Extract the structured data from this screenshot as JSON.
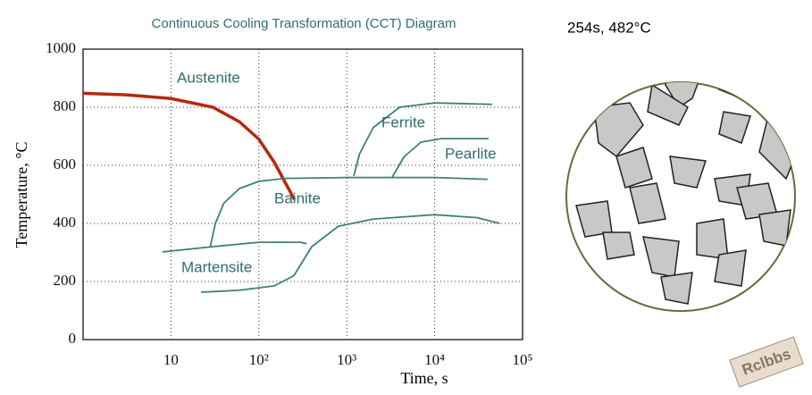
{
  "chart_data": {
    "type": "line",
    "title": "Continuous Cooling Transformation (CCT) Diagram",
    "x_label": "Time, s",
    "y_label": "Temperature, °C",
    "xscale": "log",
    "xlim": [
      1,
      100000
    ],
    "ylim": [
      0,
      1000
    ],
    "grid": true,
    "xticks": [
      10,
      {
        "value": 100,
        "label": "10²"
      },
      {
        "value": 1000,
        "label": "10³"
      },
      {
        "value": 10000,
        "label": "10⁴"
      },
      {
        "value": 100000,
        "label": "10⁵"
      }
    ],
    "yticks": [
      0,
      200,
      400,
      600,
      800,
      1000
    ],
    "annotations": [
      "Austenite",
      "Ferrite",
      "Pearlite",
      "Bainite",
      "Martensite"
    ],
    "series": [
      {
        "color": "#b32a0c",
        "x": [
          1,
          3,
          10,
          30,
          60,
          100,
          150,
          200,
          254
        ],
        "values": [
          848,
          843,
          830,
          800,
          750,
          690,
          610,
          540,
          482
        ]
      },
      {
        "color": "#3a807c",
        "x": [
          28,
          32,
          40,
          60,
          100,
          200,
          1000,
          10000,
          40000
        ],
        "values": [
          320,
          400,
          470,
          520,
          545,
          555,
          558,
          558,
          552
        ]
      },
      {
        "color": "#3a807c",
        "x": [
          8,
          30,
          100,
          300,
          350
        ],
        "values": [
          302,
          320,
          335,
          335,
          330
        ]
      },
      {
        "color": "#3a807c",
        "x": [
          22,
          60,
          150,
          250,
          400,
          800,
          2000,
          10000,
          30000,
          55000
        ],
        "values": [
          163,
          170,
          185,
          220,
          320,
          390,
          415,
          430,
          420,
          400
        ]
      },
      {
        "color": "#3a807c",
        "x": [
          1200,
          1400,
          2000,
          4000,
          10000,
          45000
        ],
        "values": [
          563,
          640,
          730,
          800,
          815,
          810
        ]
      },
      {
        "color": "#3a807c",
        "x": [
          3300,
          4500,
          7000,
          12000,
          41000
        ],
        "values": [
          560,
          630,
          680,
          692,
          692
        ]
      }
    ]
  },
  "micrograph": {
    "title": "254s, 482°C"
  },
  "watermark": "Rclbbs"
}
